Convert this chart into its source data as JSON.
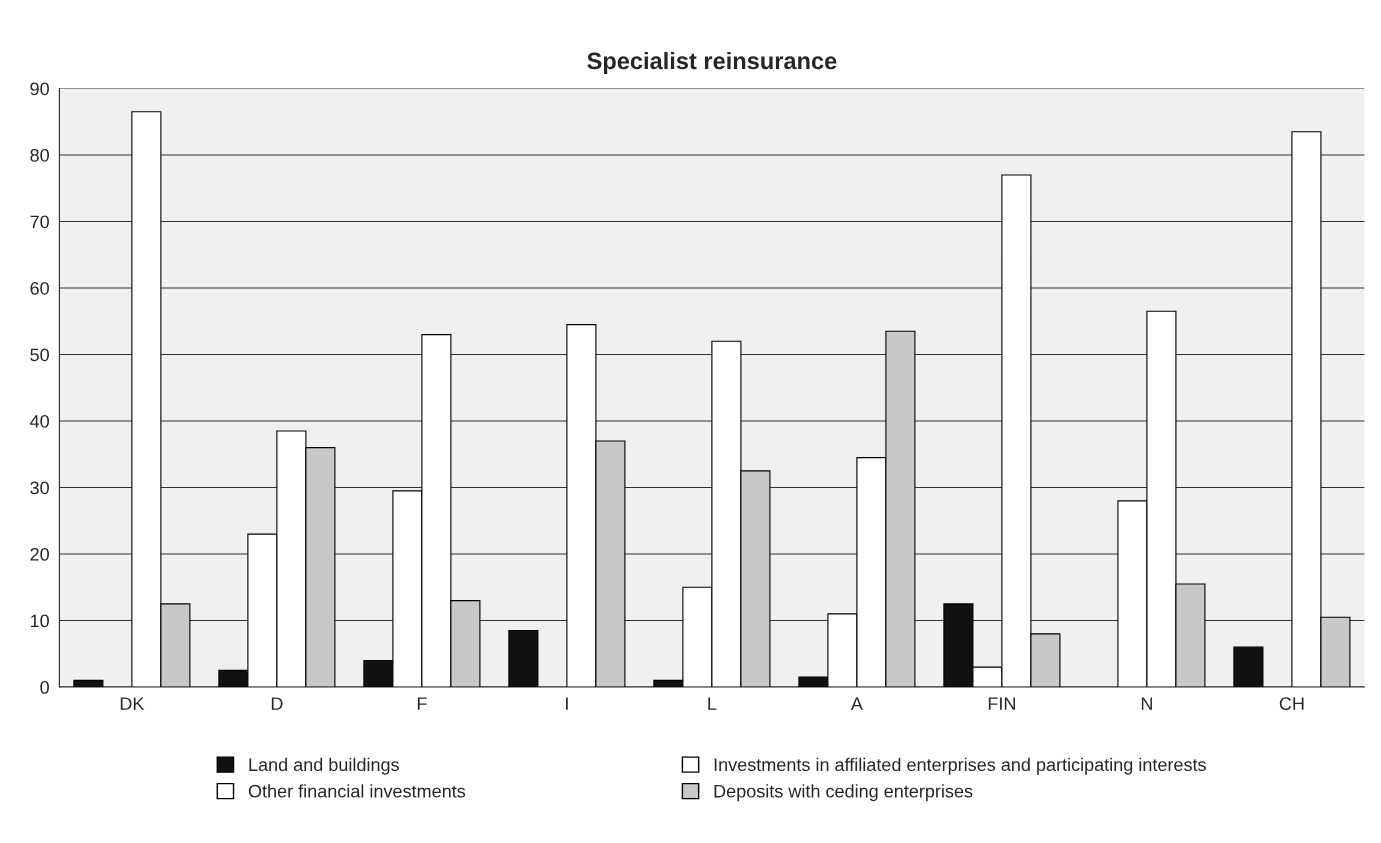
{
  "chart_data": {
    "type": "bar",
    "title": "Specialist reinsurance",
    "categories": [
      "DK",
      "D",
      "F",
      "I",
      "L",
      "A",
      "FIN",
      "N",
      "CH"
    ],
    "series": [
      {
        "name": "Land and buildings",
        "color": "#111111",
        "values": [
          1,
          2.5,
          4,
          8.5,
          1,
          1.5,
          12.5,
          null,
          6
        ]
      },
      {
        "name": "Investments in affiliated enterprises and participating interests",
        "color": "#ffffff",
        "values": [
          null,
          23,
          29.5,
          null,
          15,
          11,
          3,
          28,
          null
        ]
      },
      {
        "name": "Other financial investments",
        "color": "#ffffff",
        "values": [
          86.5,
          38.5,
          53,
          54.5,
          52,
          34.5,
          77,
          56.5,
          83.5
        ]
      },
      {
        "name": "Deposits with ceding enterprises",
        "color": "#c8c8c8",
        "values": [
          12.5,
          36,
          13,
          37,
          32.5,
          53.5,
          8,
          15.5,
          10.5
        ]
      }
    ],
    "ylim": [
      0,
      90
    ],
    "yticks": [
      0,
      10,
      20,
      30,
      40,
      50,
      60,
      70,
      80,
      90
    ],
    "grid": "y",
    "legend": "bottom"
  }
}
